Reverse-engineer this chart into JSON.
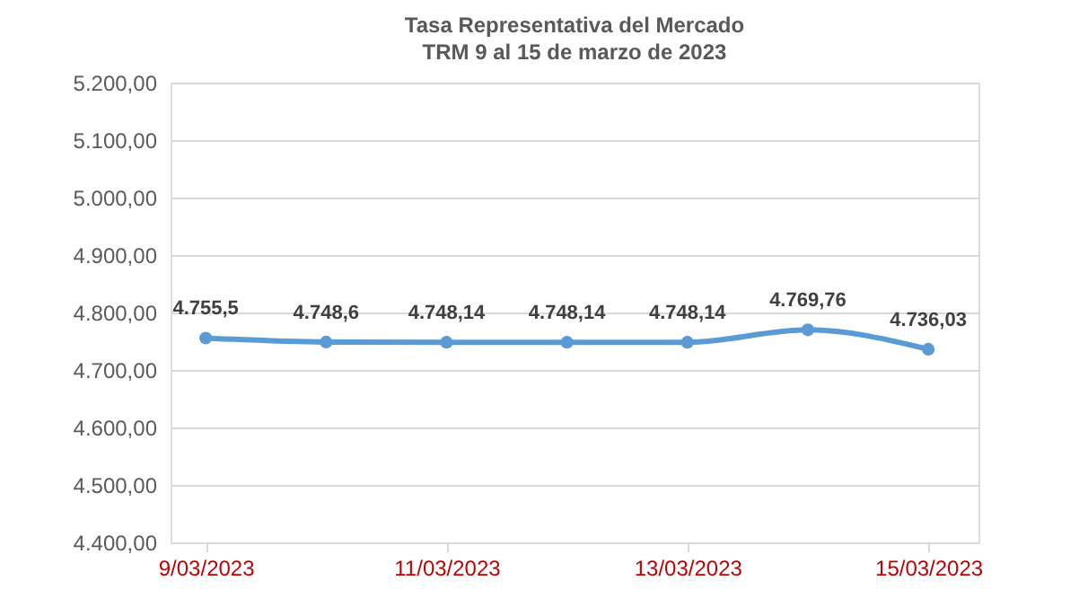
{
  "chart_data": {
    "type": "line",
    "title": "Tasa Representativa del Mercado",
    "subtitle": "TRM 9 al 15 de marzo de 2023",
    "x": [
      "2023-03-09",
      "2023-03-10",
      "2023-03-11",
      "2023-03-12",
      "2023-03-13",
      "2023-03-14",
      "2023-03-15"
    ],
    "series": [
      {
        "color": "#5b9bd5",
        "values": [
          4755.5,
          4748.6,
          4748.14,
          4748.14,
          4748.14,
          4769.76,
          4736.03
        ]
      }
    ],
    "value_labels": [
      "4.755,5",
      "4.748,6",
      "4.748,14",
      "4.748,14",
      "4.748,14",
      "4.769,76",
      "4.736,03"
    ],
    "xlim": [
      "2023-03-08T17:00",
      "2023-03-15T10:00"
    ],
    "xticks": [
      {
        "value": "2023-03-09",
        "label": "9/03/2023"
      },
      {
        "value": "2023-03-11",
        "label": "11/03/2023"
      },
      {
        "value": "2023-03-13",
        "label": "13/03/2023"
      },
      {
        "value": "2023-03-15",
        "label": "15/03/2023"
      }
    ],
    "ylim": [
      4400,
      5200
    ],
    "yticks": [
      {
        "value": 4400,
        "label": "4.400,00"
      },
      {
        "value": 4500,
        "label": "4.500,00"
      },
      {
        "value": 4600,
        "label": "4.600,00"
      },
      {
        "value": 4700,
        "label": "4.700,00"
      },
      {
        "value": 4800,
        "label": "4.800,00"
      },
      {
        "value": 4900,
        "label": "4.900,00"
      },
      {
        "value": 5000,
        "label": "5.000,00"
      },
      {
        "value": 5100,
        "label": "5.100,00"
      },
      {
        "value": 5200,
        "label": "5.200,00"
      }
    ],
    "grid": "y",
    "marker": "circle",
    "line_style": "solid"
  }
}
